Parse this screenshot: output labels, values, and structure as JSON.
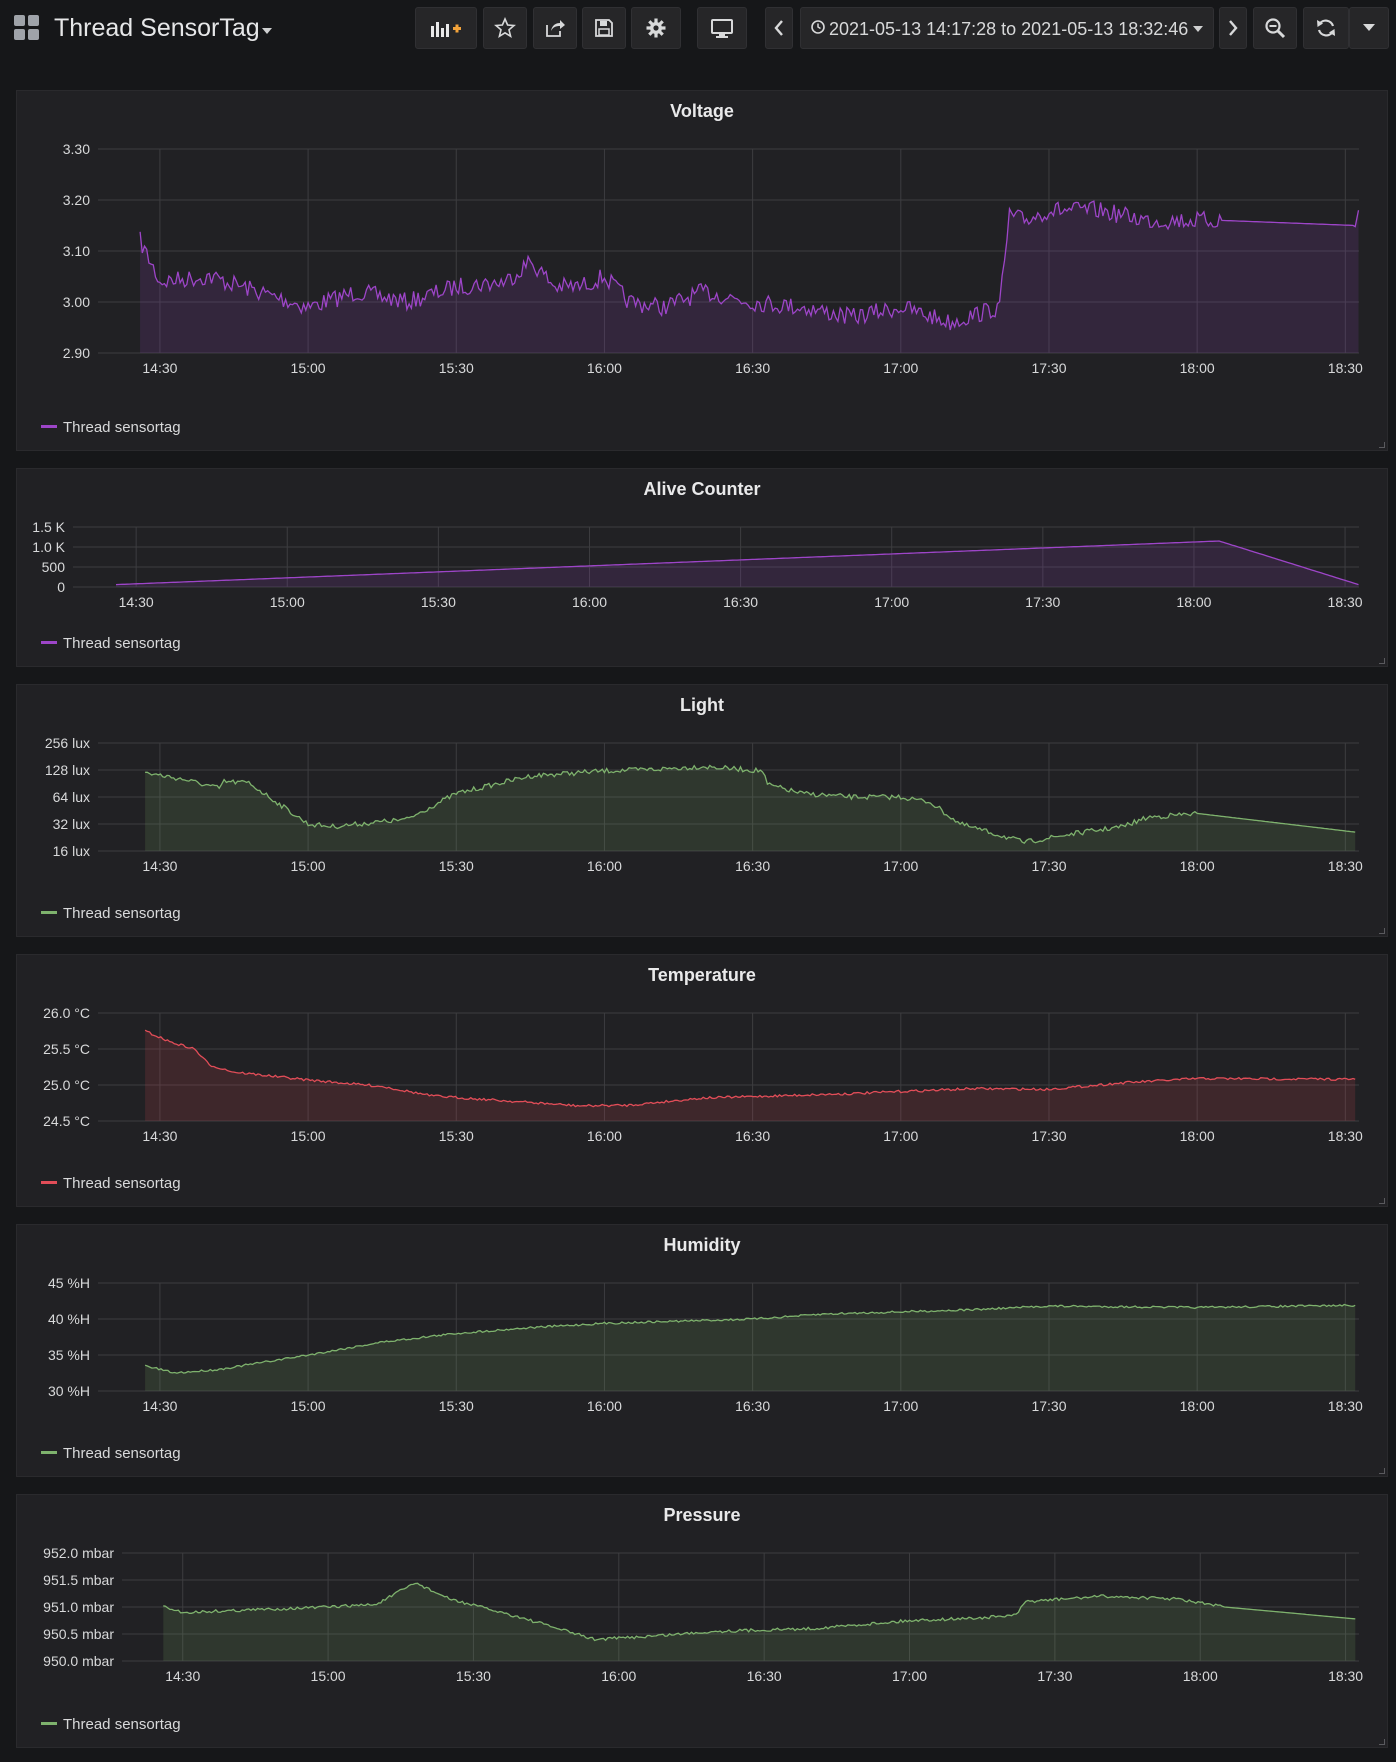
{
  "header": {
    "title": "Thread SensorTag",
    "time_range": "2021-05-13 14:17:28 to 2021-05-13 18:32:46"
  },
  "toolbar": {
    "buttons": [
      "add-panel-icon",
      "star-icon",
      "share-icon",
      "save-icon",
      "gear-icon",
      "tv-icon",
      "chevron-left-icon",
      "chevron-right-icon",
      "zoom-out-icon",
      "refresh-icon",
      "chevron-down-icon"
    ]
  },
  "colors": {
    "purple": "#9d45c8",
    "green": "#7eb26d",
    "red": "#e24d58",
    "grid": "#464649",
    "text": "#d8d9da"
  },
  "chart_data": [
    {
      "type": "area",
      "title": "Voltage",
      "ylim": [
        2.9,
        3.3
      ],
      "yticks": [
        "3.30",
        "3.20",
        "3.10",
        "3.00",
        "2.90"
      ],
      "xlim": [
        "14:17:28",
        "18:32:46"
      ],
      "xticks": [
        "14:30",
        "15:00",
        "15:30",
        "16:00",
        "16:30",
        "17:00",
        "17:30",
        "18:00",
        "18:30"
      ],
      "series": [
        {
          "name": "Thread sensortag",
          "color": "#9d45c8",
          "x": [
            "14:26",
            "14:30",
            "14:40",
            "14:50",
            "15:00",
            "15:10",
            "15:20",
            "15:30",
            "15:40",
            "15:45",
            "15:50",
            "15:55",
            "16:00",
            "16:05",
            "16:12",
            "16:20",
            "16:30",
            "16:40",
            "16:50",
            "17:00",
            "17:10",
            "17:20",
            "17:22",
            "17:25",
            "17:30",
            "17:40",
            "17:50",
            "18:00",
            "18:05",
            "18:32",
            "18:32:40"
          ],
          "y": [
            3.12,
            3.04,
            3.05,
            3.02,
            2.99,
            3.02,
            3.0,
            3.03,
            3.04,
            3.08,
            3.03,
            3.03,
            3.05,
            3.0,
            2.99,
            3.02,
            3.0,
            2.99,
            2.97,
            2.99,
            2.96,
            2.99,
            3.17,
            3.16,
            3.18,
            3.18,
            3.16,
            3.16,
            3.16,
            3.15,
            3.18
          ]
        }
      ]
    },
    {
      "type": "area",
      "title": "Alive Counter",
      "ylim": [
        0,
        1500
      ],
      "yticks": [
        "1.5 K",
        "1.0 K",
        "500",
        "0"
      ],
      "xlim": [
        "14:17:28",
        "18:32:46"
      ],
      "xticks": [
        "14:30",
        "15:00",
        "15:30",
        "16:00",
        "16:30",
        "17:00",
        "17:30",
        "18:00",
        "18:30"
      ],
      "series": [
        {
          "name": "Thread sensortag",
          "color": "#9d45c8",
          "x": [
            "14:26",
            "18:05",
            "18:32:40"
          ],
          "y": [
            60,
            1150,
            60
          ]
        }
      ]
    },
    {
      "type": "area",
      "title": "Light",
      "ylim": [
        16,
        256
      ],
      "yscale": "log2",
      "yticks": [
        "256 lux",
        "128 lux",
        "64 lux",
        "32 lux",
        "16 lux"
      ],
      "xlim": [
        "14:17:28",
        "18:32:46"
      ],
      "xticks": [
        "14:30",
        "15:00",
        "15:30",
        "16:00",
        "16:30",
        "17:00",
        "17:30",
        "18:00",
        "18:30"
      ],
      "series": [
        {
          "name": "Thread sensortag",
          "color": "#7eb26d",
          "x": [
            "14:27",
            "14:35",
            "14:42",
            "14:43",
            "14:48",
            "15:00",
            "15:05",
            "15:15",
            "15:20",
            "15:30",
            "15:45",
            "16:00",
            "16:10",
            "16:20",
            "16:32",
            "16:33",
            "16:40",
            "16:50",
            "17:00",
            "17:06",
            "17:12",
            "17:20",
            "17:25",
            "17:35",
            "17:45",
            "17:50",
            "18:00",
            "18:32"
          ],
          "y": [
            120,
            100,
            80,
            95,
            92,
            32,
            30,
            34,
            36,
            70,
            110,
            125,
            130,
            140,
            125,
            88,
            70,
            64,
            64,
            56,
            32,
            24,
            20,
            25,
            30,
            38,
            42,
            26
          ]
        }
      ]
    },
    {
      "type": "area",
      "title": "Temperature",
      "ylim": [
        24.5,
        26.0
      ],
      "yticks": [
        "26.0 °C",
        "25.5 °C",
        "25.0 °C",
        "24.5 °C"
      ],
      "xlim": [
        "14:17:28",
        "18:32:46"
      ],
      "xticks": [
        "14:30",
        "15:00",
        "15:30",
        "16:00",
        "16:30",
        "17:00",
        "17:30",
        "18:00",
        "18:30"
      ],
      "series": [
        {
          "name": "Thread sensortag",
          "color": "#e24d58",
          "x": [
            "14:27",
            "14:32",
            "14:37",
            "14:40",
            "14:45",
            "15:00",
            "15:15",
            "15:25",
            "15:40",
            "15:55",
            "16:05",
            "16:20",
            "16:35",
            "16:50",
            "17:00",
            "17:15",
            "17:30",
            "17:45",
            "18:00",
            "18:32"
          ],
          "y": [
            25.75,
            25.6,
            25.5,
            25.28,
            25.18,
            25.07,
            24.98,
            24.85,
            24.78,
            24.71,
            24.72,
            24.82,
            24.85,
            24.88,
            24.91,
            24.95,
            24.94,
            25.03,
            25.09,
            25.08
          ]
        }
      ]
    },
    {
      "type": "area",
      "title": "Humidity",
      "ylim": [
        30,
        45
      ],
      "yticks": [
        "45 %H",
        "40 %H",
        "35 %H",
        "30 %H"
      ],
      "xlim": [
        "14:17:28",
        "18:32:46"
      ],
      "xticks": [
        "14:30",
        "15:00",
        "15:30",
        "16:00",
        "16:30",
        "17:00",
        "17:30",
        "18:00",
        "18:30"
      ],
      "series": [
        {
          "name": "Thread sensortag",
          "color": "#7eb26d",
          "x": [
            "14:27",
            "14:33",
            "14:42",
            "15:00",
            "15:15",
            "15:30",
            "15:45",
            "16:00",
            "16:15",
            "16:30",
            "16:45",
            "17:00",
            "17:15",
            "17:30",
            "18:00",
            "18:32"
          ],
          "y": [
            33.5,
            32.5,
            33.0,
            35.0,
            36.8,
            38.0,
            38.8,
            39.4,
            39.7,
            40.0,
            40.7,
            41.0,
            41.3,
            41.8,
            41.6,
            41.9
          ]
        }
      ]
    },
    {
      "type": "area",
      "title": "Pressure",
      "ylim": [
        950.0,
        952.0
      ],
      "yticks": [
        "952.0 mbar",
        "951.5 mbar",
        "951.0 mbar",
        "950.5 mbar",
        "950.0 mbar"
      ],
      "xlim": [
        "14:17:28",
        "18:32:46"
      ],
      "xticks": [
        "14:30",
        "15:00",
        "15:30",
        "16:00",
        "16:30",
        "17:00",
        "17:30",
        "18:00",
        "18:30"
      ],
      "series": [
        {
          "name": "Thread sensortag",
          "color": "#7eb26d",
          "x": [
            "14:26",
            "14:30",
            "14:45",
            "15:00",
            "15:10",
            "15:18",
            "15:25",
            "15:40",
            "15:55",
            "16:05",
            "16:20",
            "16:40",
            "17:00",
            "17:15",
            "17:22",
            "17:24",
            "17:40",
            "17:55",
            "18:05",
            "18:32"
          ],
          "y": [
            951.0,
            950.9,
            950.95,
            951.0,
            951.05,
            951.45,
            951.15,
            950.8,
            950.4,
            950.45,
            950.55,
            950.6,
            950.75,
            950.8,
            950.85,
            951.1,
            951.2,
            951.15,
            951.0,
            950.78
          ]
        }
      ]
    }
  ]
}
